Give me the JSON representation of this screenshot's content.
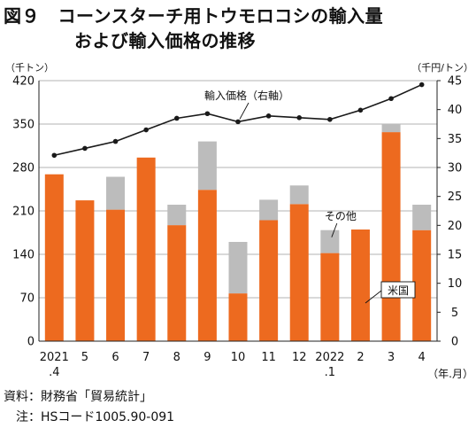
{
  "title_line1": "図９　コーンスターチ用トウモロコシの輸入量",
  "title_line2": "および輸入価格の推移",
  "source": "資料：財務省「貿易統計」",
  "note": "注：HSコード1005.90-091",
  "colors": {
    "us": "#ed6a1f",
    "other": "#bcbcbc",
    "line": "#1a1a1a",
    "grid": "#9a9a9a",
    "axis": "#222222"
  },
  "chart_data": {
    "type": "bar",
    "left_unit": "（千トン）",
    "right_unit": "（千円/トン）",
    "x_unit": "（年.月）",
    "categories": [
      "2021\n.4",
      "5",
      "6",
      "7",
      "8",
      "9",
      "10",
      "11",
      "12",
      "2022\n.1",
      "2",
      "3",
      "4"
    ],
    "left_ticks": [
      "0",
      "70",
      "140",
      "210",
      "280",
      "350",
      "420"
    ],
    "right_ticks": [
      "0",
      "5",
      "10",
      "15",
      "20",
      "25",
      "30",
      "35",
      "40",
      "45"
    ],
    "ylim_left": [
      0,
      420
    ],
    "ylim_right": [
      0,
      45
    ],
    "grid": true,
    "stacked": true,
    "series": [
      {
        "name": "米国",
        "axis": "left",
        "values": [
          269,
          227,
          212,
          296,
          187,
          244,
          77,
          195,
          221,
          142,
          180,
          337,
          179
        ]
      },
      {
        "name": "その他",
        "axis": "left",
        "values": [
          0,
          0,
          53,
          0,
          33,
          78,
          83,
          33,
          30,
          37,
          0,
          13,
          41
        ]
      },
      {
        "name": "輸入価格（右軸）",
        "axis": "right",
        "type": "line",
        "values": [
          32.1,
          33.3,
          34.5,
          36.5,
          38.5,
          39.3,
          37.9,
          38.9,
          38.6,
          38.3,
          39.9,
          41.9,
          44.3
        ]
      }
    ],
    "annotations": {
      "line_label": "輸入価格（右軸）",
      "other_label": "その他",
      "us_label": "米国"
    }
  }
}
